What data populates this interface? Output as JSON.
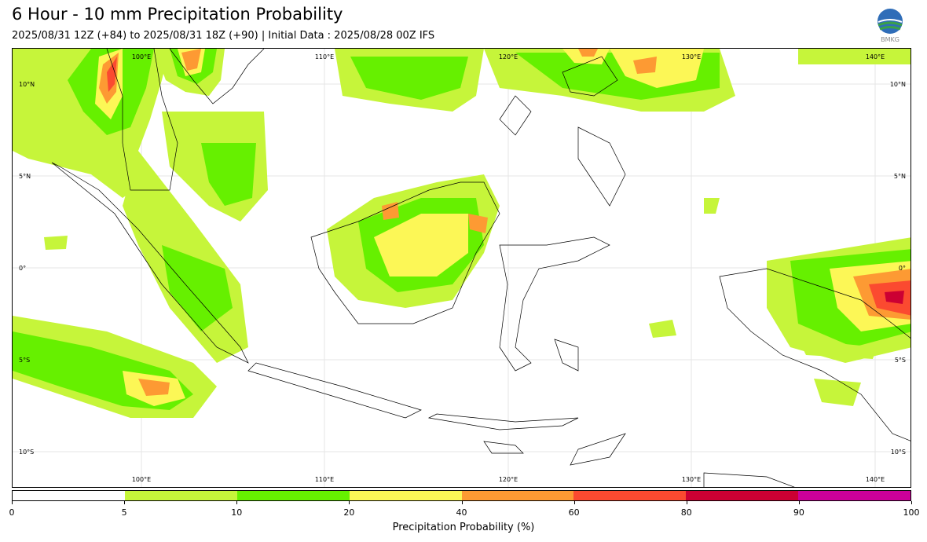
{
  "header": {
    "title": "6 Hour - 10 mm Precipitation Probability",
    "subtitle": "2025/08/31 12Z (+84) to 2025/08/31 18Z (+90) | Initial Data : 2025/08/28 00Z IFS",
    "logo_text": "BMKG"
  },
  "map": {
    "lon_labels": [
      "100°E",
      "110°E",
      "120°E",
      "130°E",
      "140°E"
    ],
    "lat_labels": [
      "10°N",
      "5°N",
      "0°",
      "5°S",
      "10°S"
    ]
  },
  "colorbar": {
    "label": "Precipitation Probability (%)",
    "ticks": [
      "0",
      "5",
      "10",
      "20",
      "40",
      "60",
      "80",
      "90",
      "100"
    ],
    "colors": [
      "#ffffff",
      "#c6f53a",
      "#66f000",
      "#fcf756",
      "#fd9a33",
      "#fb4a30",
      "#cc0033",
      "#cc0099"
    ]
  }
}
